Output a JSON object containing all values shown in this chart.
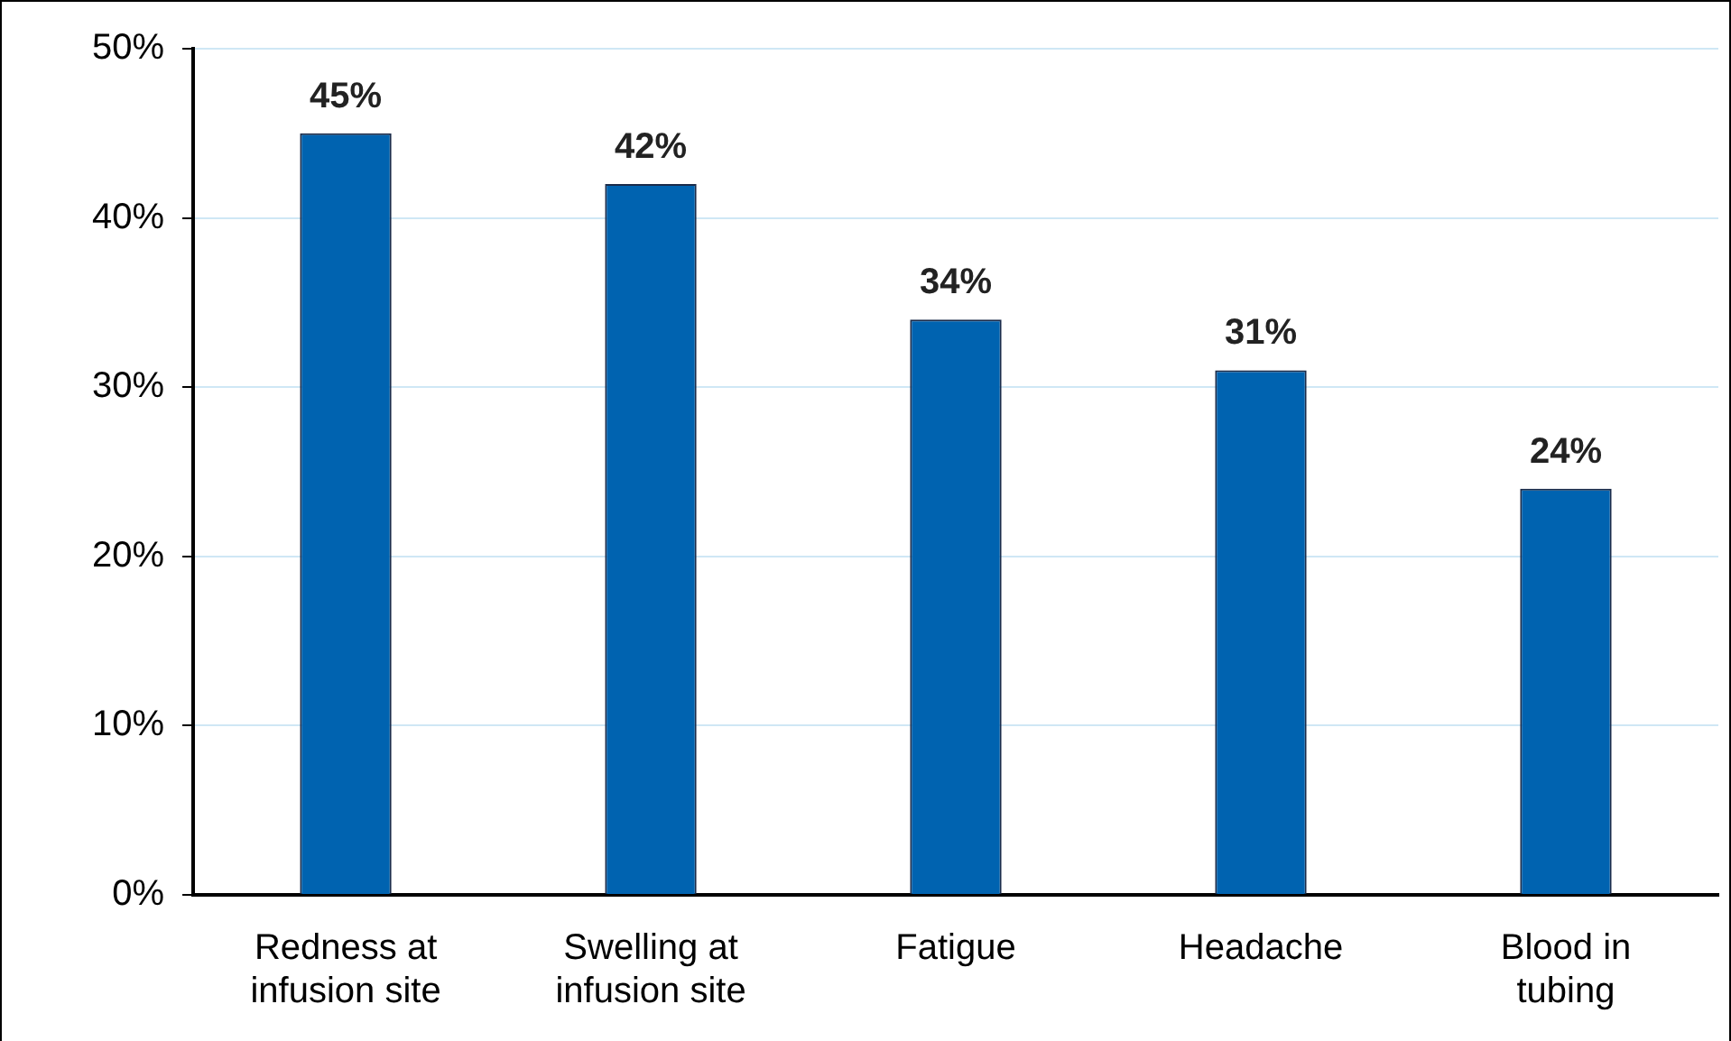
{
  "chart_data": {
    "type": "bar",
    "categories": [
      "Redness at\ninfusion site",
      "Swelling at\ninfusion site",
      "Fatigue",
      "Headache",
      "Blood in\ntubing"
    ],
    "values": [
      45,
      42,
      34,
      31,
      24
    ],
    "value_labels": [
      "45%",
      "42%",
      "34%",
      "31%",
      "24%"
    ],
    "color": "#0063b0",
    "ylim": [
      0,
      50
    ],
    "yticks": [
      {
        "value": 0,
        "label": "0%"
      },
      {
        "value": 10,
        "label": "10%"
      },
      {
        "value": 20,
        "label": "20%"
      },
      {
        "value": 30,
        "label": "30%"
      },
      {
        "value": 40,
        "label": "40%"
      },
      {
        "value": 50,
        "label": "50%"
      }
    ],
    "grid": "y",
    "legend": false
  }
}
